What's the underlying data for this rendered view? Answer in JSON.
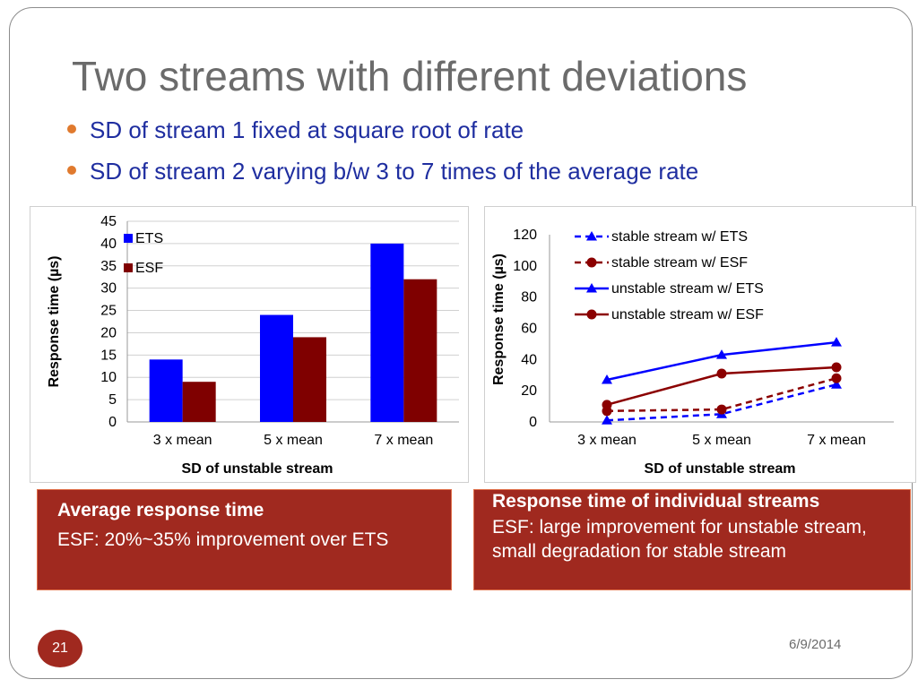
{
  "slide": {
    "title": "Two streams with different deviations",
    "bullets": [
      "SD of stream 1 fixed at square root of rate",
      "SD of stream 2 varying b/w 3 to 7 times of the average rate"
    ],
    "slide_number": "21",
    "date": "6/9/2014",
    "colors": {
      "title": "#6b6b6b",
      "bullet_text": "#1f2ea0",
      "bullet_dot": "#e07a2e",
      "panel_bg": "#a0291f"
    }
  },
  "panels": {
    "left": {
      "heading": "Average response time",
      "text": "ESF: 20%~35% improvement over ETS"
    },
    "right": {
      "heading": "Response time of individual streams",
      "text": "ESF: large improvement for unstable stream, small degradation for stable stream"
    }
  },
  "chart_data": [
    {
      "type": "bar",
      "categories": [
        "3 x mean",
        "5 x mean",
        "7 x mean"
      ],
      "series": [
        {
          "name": "ETS",
          "values": [
            14,
            24,
            40
          ],
          "color": "#0000ff"
        },
        {
          "name": "ESF",
          "values": [
            9,
            19,
            32
          ],
          "color": "#7f0000"
        }
      ],
      "xlabel": "SD of unstable stream",
      "ylabel": "Response time (µs)",
      "ylim": [
        0,
        45
      ],
      "yticks": [
        "0",
        "5",
        "10",
        "15",
        "20",
        "25",
        "30",
        "35",
        "40",
        "45"
      ],
      "grid": true,
      "legend": "top-left"
    },
    {
      "type": "line",
      "categories": [
        "3 x mean",
        "5 x mean",
        "7 x mean"
      ],
      "series": [
        {
          "name": "stable stream w/ ETS",
          "values": [
            1,
            5,
            24
          ],
          "color": "#0000ff",
          "dashed": true,
          "marker": "triangle"
        },
        {
          "name": "stable stream w/ ESF",
          "values": [
            7,
            8,
            28
          ],
          "color": "#8b0000",
          "dashed": true,
          "marker": "circle"
        },
        {
          "name": "unstable stream w/ ETS",
          "values": [
            27,
            43,
            51
          ],
          "color": "#0000ff",
          "dashed": false,
          "marker": "triangle"
        },
        {
          "name": "unstable stream w/ ESF",
          "values": [
            11,
            31,
            35
          ],
          "color": "#8b0000",
          "dashed": false,
          "marker": "circle"
        }
      ],
      "xlabel": "SD of unstable stream",
      "ylabel": "Response time (µs)",
      "ylim": [
        0,
        120
      ],
      "yticks": [
        "0",
        "20",
        "40",
        "60",
        "80",
        "100",
        "120"
      ],
      "grid": false,
      "legend": "top-right"
    }
  ]
}
